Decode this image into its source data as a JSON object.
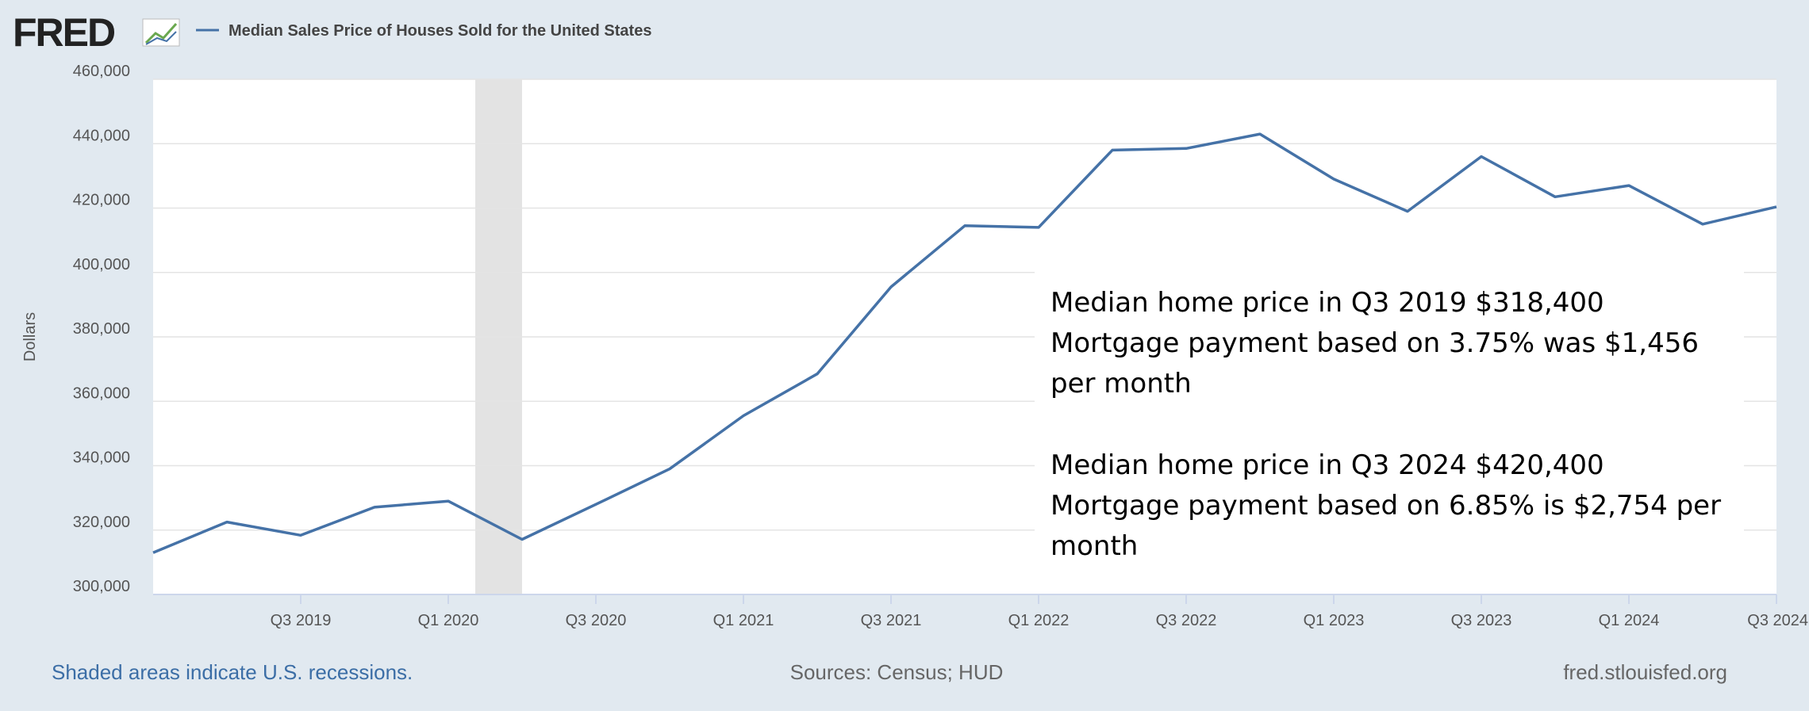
{
  "header": {
    "logo": "FRED",
    "legend": "Median Sales Price of Houses Sold for the United States"
  },
  "chart_data": {
    "type": "line",
    "y_label": "Dollars",
    "categories": [
      null,
      null,
      "Q3 2019",
      null,
      "Q1 2020",
      null,
      "Q3 2020",
      null,
      "Q1 2021",
      null,
      "Q3 2021",
      null,
      "Q1 2022",
      null,
      "Q3 2022",
      null,
      "Q1 2023",
      null,
      "Q3 2023",
      null,
      "Q1 2024",
      null,
      "Q3 2024"
    ],
    "series": [
      {
        "name": "Median Sales Price of Houses Sold for the United States",
        "color": "#4572a7",
        "values": [
          313000,
          322500,
          318400,
          327100,
          329000,
          317100,
          328000,
          339000,
          355500,
          368500,
          395500,
          414500,
          414000,
          438000,
          438500,
          443000,
          429000,
          419000,
          436000,
          423500,
          427000,
          415000,
          420400
        ]
      }
    ],
    "ylim": [
      300000,
      460000
    ],
    "yticks": [
      {
        "value": 300000,
        "label": "300,000"
      },
      {
        "value": 320000,
        "label": "320,000"
      },
      {
        "value": 340000,
        "label": "340,000"
      },
      {
        "value": 360000,
        "label": "360,000"
      },
      {
        "value": 380000,
        "label": "380,000"
      },
      {
        "value": 400000,
        "label": "400,000"
      },
      {
        "value": 420000,
        "label": "420,000"
      },
      {
        "value": 440000,
        "label": "440,000"
      },
      {
        "value": 460000,
        "label": "460,000"
      }
    ],
    "grid": true,
    "annotations": [
      [
        "Median home price in Q3 2019 $318,400",
        "Mortgage payment based on 3.75% was $1,456",
        "per month"
      ],
      [
        "Median home price in Q3 2024 $420,400",
        "Mortgage payment based on 6.85% is $2,754 per",
        "month"
      ]
    ]
  },
  "footer": {
    "note": "Shaded areas indicate U.S. recessions.",
    "sources": "Sources: Census; HUD",
    "site": "fred.stlouisfed.org"
  }
}
